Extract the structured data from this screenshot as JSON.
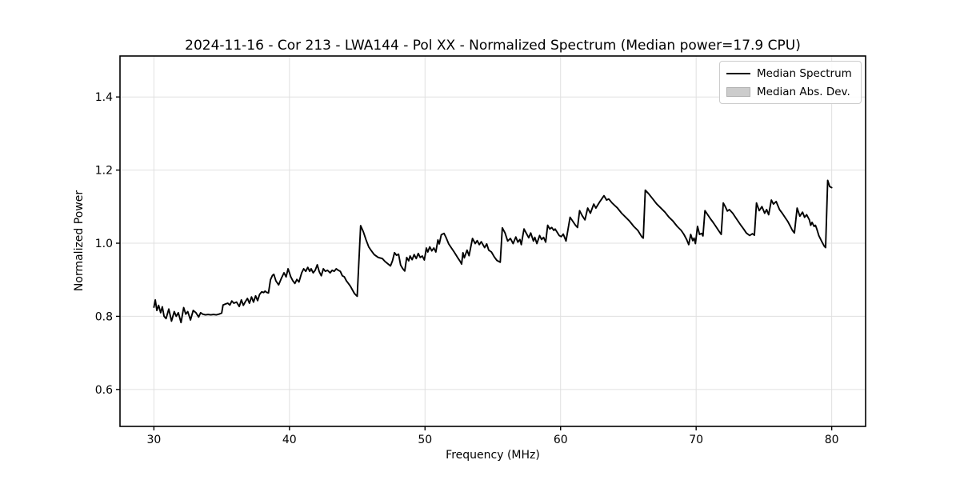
{
  "chart_data": {
    "type": "line",
    "title": "2024-11-16 - Cor 213 - LWA144 - Pol XX - Normalized Spectrum (Median power=17.9 CPU)",
    "xlabel": "Frequency (MHz)",
    "ylabel": "Normalized Power",
    "xlim": [
      27.5,
      82.5
    ],
    "ylim": [
      0.499,
      1.512
    ],
    "xticks": [
      30,
      40,
      50,
      60,
      70,
      80
    ],
    "xtick_labels": [
      "30",
      "40",
      "50",
      "60",
      "70",
      "80"
    ],
    "yticks": [
      0.6,
      0.8,
      1.0,
      1.2,
      1.4
    ],
    "ytick_labels": [
      "0.6",
      "0.8",
      "1.0",
      "1.2",
      "1.4"
    ],
    "grid": true,
    "legend_position": "upper right",
    "legend": {
      "entries": [
        {
          "label": "Median Spectrum",
          "type": "line",
          "color": "#000000"
        },
        {
          "label": "Median Abs. Dev.",
          "type": "patch",
          "color": "#cccccc"
        }
      ]
    },
    "colors": {
      "line": "#000000",
      "band": "#c8c8c8",
      "grid": "#e0e0e0",
      "spine": "#000000",
      "tick": "#000000",
      "background": "#ffffff"
    },
    "mad_halfwidth": 0.002,
    "series": [
      {
        "name": "Median Spectrum",
        "points": [
          [
            30.0,
            0.825
          ],
          [
            30.1,
            0.845
          ],
          [
            30.22,
            0.816
          ],
          [
            30.35,
            0.83
          ],
          [
            30.5,
            0.81
          ],
          [
            30.62,
            0.826
          ],
          [
            30.75,
            0.8
          ],
          [
            30.9,
            0.794
          ],
          [
            31.1,
            0.82
          ],
          [
            31.3,
            0.787
          ],
          [
            31.5,
            0.813
          ],
          [
            31.65,
            0.8
          ],
          [
            31.8,
            0.81
          ],
          [
            32.0,
            0.783
          ],
          [
            32.2,
            0.824
          ],
          [
            32.35,
            0.806
          ],
          [
            32.5,
            0.813
          ],
          [
            32.7,
            0.79
          ],
          [
            32.9,
            0.816
          ],
          [
            33.1,
            0.81
          ],
          [
            33.3,
            0.798
          ],
          [
            33.45,
            0.81
          ],
          [
            33.6,
            0.806
          ],
          [
            33.8,
            0.804
          ],
          [
            34.0,
            0.805
          ],
          [
            34.2,
            0.804
          ],
          [
            34.4,
            0.805
          ],
          [
            34.6,
            0.804
          ],
          [
            34.8,
            0.806
          ],
          [
            35.0,
            0.809
          ],
          [
            35.1,
            0.831
          ],
          [
            35.3,
            0.834
          ],
          [
            35.45,
            0.836
          ],
          [
            35.6,
            0.831
          ],
          [
            35.75,
            0.842
          ],
          [
            35.9,
            0.836
          ],
          [
            36.1,
            0.839
          ],
          [
            36.3,
            0.827
          ],
          [
            36.45,
            0.845
          ],
          [
            36.6,
            0.83
          ],
          [
            36.75,
            0.84
          ],
          [
            36.9,
            0.849
          ],
          [
            37.05,
            0.836
          ],
          [
            37.2,
            0.853
          ],
          [
            37.35,
            0.839
          ],
          [
            37.5,
            0.856
          ],
          [
            37.65,
            0.843
          ],
          [
            37.8,
            0.86
          ],
          [
            37.95,
            0.867
          ],
          [
            38.1,
            0.865
          ],
          [
            38.2,
            0.869
          ],
          [
            38.3,
            0.866
          ],
          [
            38.45,
            0.864
          ],
          [
            38.6,
            0.9
          ],
          [
            38.75,
            0.912
          ],
          [
            38.85,
            0.915
          ],
          [
            39.0,
            0.897
          ],
          [
            39.2,
            0.886
          ],
          [
            39.4,
            0.904
          ],
          [
            39.6,
            0.919
          ],
          [
            39.75,
            0.908
          ],
          [
            39.9,
            0.93
          ],
          [
            40.1,
            0.908
          ],
          [
            40.25,
            0.897
          ],
          [
            40.4,
            0.89
          ],
          [
            40.55,
            0.901
          ],
          [
            40.7,
            0.894
          ],
          [
            40.9,
            0.919
          ],
          [
            41.05,
            0.93
          ],
          [
            41.2,
            0.923
          ],
          [
            41.35,
            0.934
          ],
          [
            41.5,
            0.923
          ],
          [
            41.6,
            0.93
          ],
          [
            41.75,
            0.919
          ],
          [
            41.9,
            0.926
          ],
          [
            42.05,
            0.941
          ],
          [
            42.2,
            0.922
          ],
          [
            42.35,
            0.911
          ],
          [
            42.5,
            0.93
          ],
          [
            42.65,
            0.923
          ],
          [
            42.8,
            0.926
          ],
          [
            43.0,
            0.919
          ],
          [
            43.15,
            0.926
          ],
          [
            43.3,
            0.923
          ],
          [
            43.45,
            0.93
          ],
          [
            43.6,
            0.926
          ],
          [
            43.75,
            0.923
          ],
          [
            43.9,
            0.911
          ],
          [
            44.05,
            0.908
          ],
          [
            44.2,
            0.897
          ],
          [
            44.35,
            0.89
          ],
          [
            44.5,
            0.882
          ],
          [
            44.65,
            0.872
          ],
          [
            44.8,
            0.862
          ],
          [
            45.0,
            0.855
          ],
          [
            45.25,
            1.048
          ],
          [
            45.45,
            1.031
          ],
          [
            45.65,
            1.009
          ],
          [
            45.85,
            0.99
          ],
          [
            46.05,
            0.979
          ],
          [
            46.25,
            0.969
          ],
          [
            46.55,
            0.961
          ],
          [
            46.85,
            0.958
          ],
          [
            47.05,
            0.95
          ],
          [
            47.25,
            0.944
          ],
          [
            47.45,
            0.938
          ],
          [
            47.6,
            0.952
          ],
          [
            47.75,
            0.974
          ],
          [
            47.9,
            0.967
          ],
          [
            48.05,
            0.97
          ],
          [
            48.2,
            0.94
          ],
          [
            48.35,
            0.931
          ],
          [
            48.5,
            0.924
          ],
          [
            48.65,
            0.961
          ],
          [
            48.8,
            0.952
          ],
          [
            48.9,
            0.965
          ],
          [
            49.05,
            0.955
          ],
          [
            49.2,
            0.969
          ],
          [
            49.35,
            0.958
          ],
          [
            49.5,
            0.972
          ],
          [
            49.65,
            0.961
          ],
          [
            49.8,
            0.965
          ],
          [
            49.95,
            0.954
          ],
          [
            50.1,
            0.987
          ],
          [
            50.2,
            0.976
          ],
          [
            50.35,
            0.99
          ],
          [
            50.5,
            0.979
          ],
          [
            50.65,
            0.987
          ],
          [
            50.8,
            0.976
          ],
          [
            50.95,
            1.009
          ],
          [
            51.05,
            0.998
          ],
          [
            51.2,
            1.023
          ],
          [
            51.4,
            1.027
          ],
          [
            51.55,
            1.016
          ],
          [
            51.75,
            0.998
          ],
          [
            51.95,
            0.987
          ],
          [
            52.15,
            0.976
          ],
          [
            52.4,
            0.961
          ],
          [
            52.6,
            0.95
          ],
          [
            52.7,
            0.943
          ],
          [
            52.8,
            0.974
          ],
          [
            52.9,
            0.96
          ],
          [
            53.1,
            0.981
          ],
          [
            53.25,
            0.966
          ],
          [
            53.5,
            1.013
          ],
          [
            53.7,
            0.999
          ],
          [
            53.85,
            1.007
          ],
          [
            54.0,
            0.996
          ],
          [
            54.15,
            1.004
          ],
          [
            54.4,
            0.988
          ],
          [
            54.55,
            0.998
          ],
          [
            54.7,
            0.981
          ],
          [
            54.9,
            0.976
          ],
          [
            55.1,
            0.963
          ],
          [
            55.3,
            0.953
          ],
          [
            55.55,
            0.948
          ],
          [
            55.7,
            1.042
          ],
          [
            55.9,
            1.028
          ],
          [
            56.1,
            1.006
          ],
          [
            56.3,
            1.013
          ],
          [
            56.5,
            0.999
          ],
          [
            56.7,
            1.017
          ],
          [
            56.85,
            1.003
          ],
          [
            57.0,
            1.01
          ],
          [
            57.1,
            0.996
          ],
          [
            57.3,
            1.039
          ],
          [
            57.5,
            1.025
          ],
          [
            57.65,
            1.015
          ],
          [
            57.8,
            1.028
          ],
          [
            58.0,
            1.006
          ],
          [
            58.1,
            1.016
          ],
          [
            58.25,
            0.999
          ],
          [
            58.45,
            1.021
          ],
          [
            58.6,
            1.01
          ],
          [
            58.75,
            1.016
          ],
          [
            58.9,
            1.003
          ],
          [
            59.05,
            1.049
          ],
          [
            59.2,
            1.039
          ],
          [
            59.35,
            1.043
          ],
          [
            59.5,
            1.035
          ],
          [
            59.6,
            1.039
          ],
          [
            59.9,
            1.021
          ],
          [
            60.05,
            1.018
          ],
          [
            60.2,
            1.025
          ],
          [
            60.4,
            1.006
          ],
          [
            60.7,
            1.071
          ],
          [
            60.9,
            1.06
          ],
          [
            61.1,
            1.049
          ],
          [
            61.25,
            1.043
          ],
          [
            61.4,
            1.089
          ],
          [
            61.6,
            1.075
          ],
          [
            61.8,
            1.064
          ],
          [
            62.0,
            1.096
          ],
          [
            62.2,
            1.082
          ],
          [
            62.45,
            1.107
          ],
          [
            62.6,
            1.096
          ],
          [
            62.9,
            1.114
          ],
          [
            63.2,
            1.13
          ],
          [
            63.4,
            1.118
          ],
          [
            63.55,
            1.121
          ],
          [
            63.8,
            1.11
          ],
          [
            64.0,
            1.103
          ],
          [
            64.2,
            1.096
          ],
          [
            64.5,
            1.082
          ],
          [
            64.8,
            1.071
          ],
          [
            65.1,
            1.06
          ],
          [
            65.4,
            1.046
          ],
          [
            65.7,
            1.035
          ],
          [
            66.0,
            1.017
          ],
          [
            66.1,
            1.014
          ],
          [
            66.25,
            1.145
          ],
          [
            66.5,
            1.135
          ],
          [
            66.8,
            1.121
          ],
          [
            67.1,
            1.107
          ],
          [
            67.4,
            1.096
          ],
          [
            67.7,
            1.085
          ],
          [
            68.0,
            1.071
          ],
          [
            68.3,
            1.06
          ],
          [
            68.6,
            1.046
          ],
          [
            68.9,
            1.035
          ],
          [
            69.1,
            1.024
          ],
          [
            69.3,
            1.01
          ],
          [
            69.45,
            0.996
          ],
          [
            69.6,
            1.024
          ],
          [
            69.75,
            1.007
          ],
          [
            69.85,
            1.014
          ],
          [
            69.95,
            0.999
          ],
          [
            70.1,
            1.046
          ],
          [
            70.25,
            1.024
          ],
          [
            70.4,
            1.027
          ],
          [
            70.5,
            1.02
          ],
          [
            70.65,
            1.089
          ],
          [
            70.85,
            1.078
          ],
          [
            71.05,
            1.067
          ],
          [
            71.25,
            1.057
          ],
          [
            71.45,
            1.046
          ],
          [
            71.65,
            1.035
          ],
          [
            71.85,
            1.024
          ],
          [
            72.0,
            1.11
          ],
          [
            72.15,
            1.1
          ],
          [
            72.3,
            1.088
          ],
          [
            72.45,
            1.092
          ],
          [
            72.7,
            1.082
          ],
          [
            72.9,
            1.071
          ],
          [
            73.1,
            1.06
          ],
          [
            73.3,
            1.049
          ],
          [
            73.5,
            1.039
          ],
          [
            73.7,
            1.028
          ],
          [
            73.95,
            1.021
          ],
          [
            74.15,
            1.026
          ],
          [
            74.3,
            1.022
          ],
          [
            74.45,
            1.11
          ],
          [
            74.65,
            1.089
          ],
          [
            74.85,
            1.1
          ],
          [
            75.05,
            1.082
          ],
          [
            75.2,
            1.092
          ],
          [
            75.35,
            1.078
          ],
          [
            75.55,
            1.118
          ],
          [
            75.7,
            1.107
          ],
          [
            75.9,
            1.114
          ],
          [
            76.15,
            1.092
          ],
          [
            76.35,
            1.082
          ],
          [
            76.55,
            1.071
          ],
          [
            76.75,
            1.06
          ],
          [
            76.95,
            1.046
          ],
          [
            77.1,
            1.035
          ],
          [
            77.25,
            1.028
          ],
          [
            77.45,
            1.096
          ],
          [
            77.65,
            1.074
          ],
          [
            77.85,
            1.085
          ],
          [
            78.0,
            1.071
          ],
          [
            78.15,
            1.078
          ],
          [
            78.35,
            1.064
          ],
          [
            78.45,
            1.049
          ],
          [
            78.55,
            1.057
          ],
          [
            78.7,
            1.046
          ],
          [
            78.8,
            1.049
          ],
          [
            78.9,
            1.039
          ],
          [
            79.05,
            1.021
          ],
          [
            79.25,
            1.006
          ],
          [
            79.45,
            0.992
          ],
          [
            79.55,
            0.988
          ],
          [
            79.7,
            1.172
          ],
          [
            79.85,
            1.155
          ],
          [
            80.0,
            1.152
          ]
        ]
      }
    ]
  }
}
